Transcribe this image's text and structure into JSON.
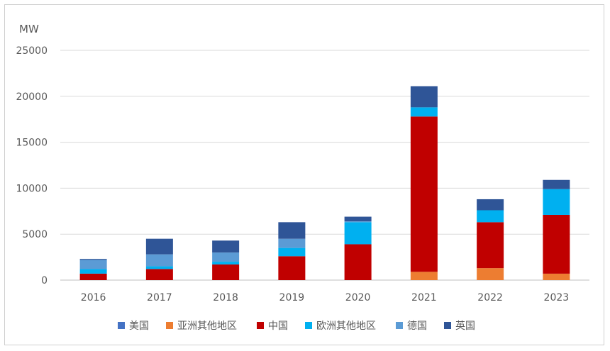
{
  "chart_data": {
    "type": "bar",
    "stacked": true,
    "unit_label": "MW",
    "title": "",
    "xlabel": "",
    "ylabel": "MW",
    "ylim": [
      0,
      25000
    ],
    "yticks": [
      "0",
      "5000",
      "10000",
      "15000",
      "20000",
      "25000"
    ],
    "ytick_values": [
      0,
      5000,
      10000,
      15000,
      20000,
      25000
    ],
    "grid": true,
    "legend_position": "bottom",
    "categories": [
      "2016",
      "2017",
      "2018",
      "2019",
      "2020",
      "2021",
      "2022",
      "2023"
    ],
    "series": [
      {
        "name": "亚洲其他地区",
        "color": "#ED7D31",
        "values": [
          0,
          0,
          0,
          0,
          0,
          900,
          1300,
          700
        ]
      },
      {
        "name": "中国",
        "color": "#C00000",
        "values": [
          700,
          1200,
          1700,
          2600,
          3900,
          16900,
          5000,
          6400
        ]
      },
      {
        "name": "欧洲其他地区",
        "color": "#00B0F0",
        "values": [
          500,
          300,
          300,
          900,
          2400,
          1000,
          1300,
          2800
        ]
      },
      {
        "name": "德国",
        "color": "#5B9BD5",
        "values": [
          1000,
          1300,
          1000,
          1000,
          100,
          0,
          0,
          0
        ]
      },
      {
        "name": "英国",
        "color": "#2F5597",
        "values": [
          100,
          1700,
          1300,
          1800,
          500,
          2300,
          1200,
          1000
        ]
      },
      {
        "name": "美国",
        "color": "#4472C4",
        "values": [
          0,
          0,
          0,
          0,
          0,
          0,
          0,
          0
        ]
      }
    ],
    "legend": [
      {
        "name": "美国",
        "color": "#4472C4"
      },
      {
        "name": "亚洲其他地区",
        "color": "#ED7D31"
      },
      {
        "name": "中国",
        "color": "#C00000"
      },
      {
        "name": "欧洲其他地区",
        "color": "#00B0F0"
      },
      {
        "name": "德国",
        "color": "#5B9BD5"
      },
      {
        "name": "英国",
        "color": "#2F5597"
      }
    ]
  }
}
